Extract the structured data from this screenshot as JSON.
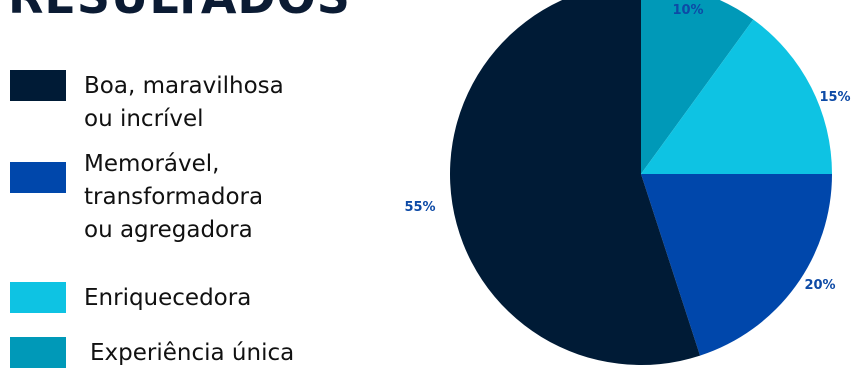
{
  "chart_data": {
    "type": "pie",
    "title": "RESULTADOS",
    "legend_position": "left",
    "slices": [
      {
        "label": "Boa, maravilhosa\nou incrível",
        "value": 55,
        "value_label": "55%",
        "color": "#001b36"
      },
      {
        "label": "Memorável,\ntransformadora\nou agregadora",
        "value": 20,
        "value_label": "20%",
        "color": "#0047ab"
      },
      {
        "label": "Enriquecedora",
        "value": 15,
        "value_label": "15%",
        "color": "#0ec3e3"
      },
      {
        "label": "Experiência única",
        "value": 10,
        "value_label": "10%",
        "color": "#0099b8"
      }
    ]
  }
}
